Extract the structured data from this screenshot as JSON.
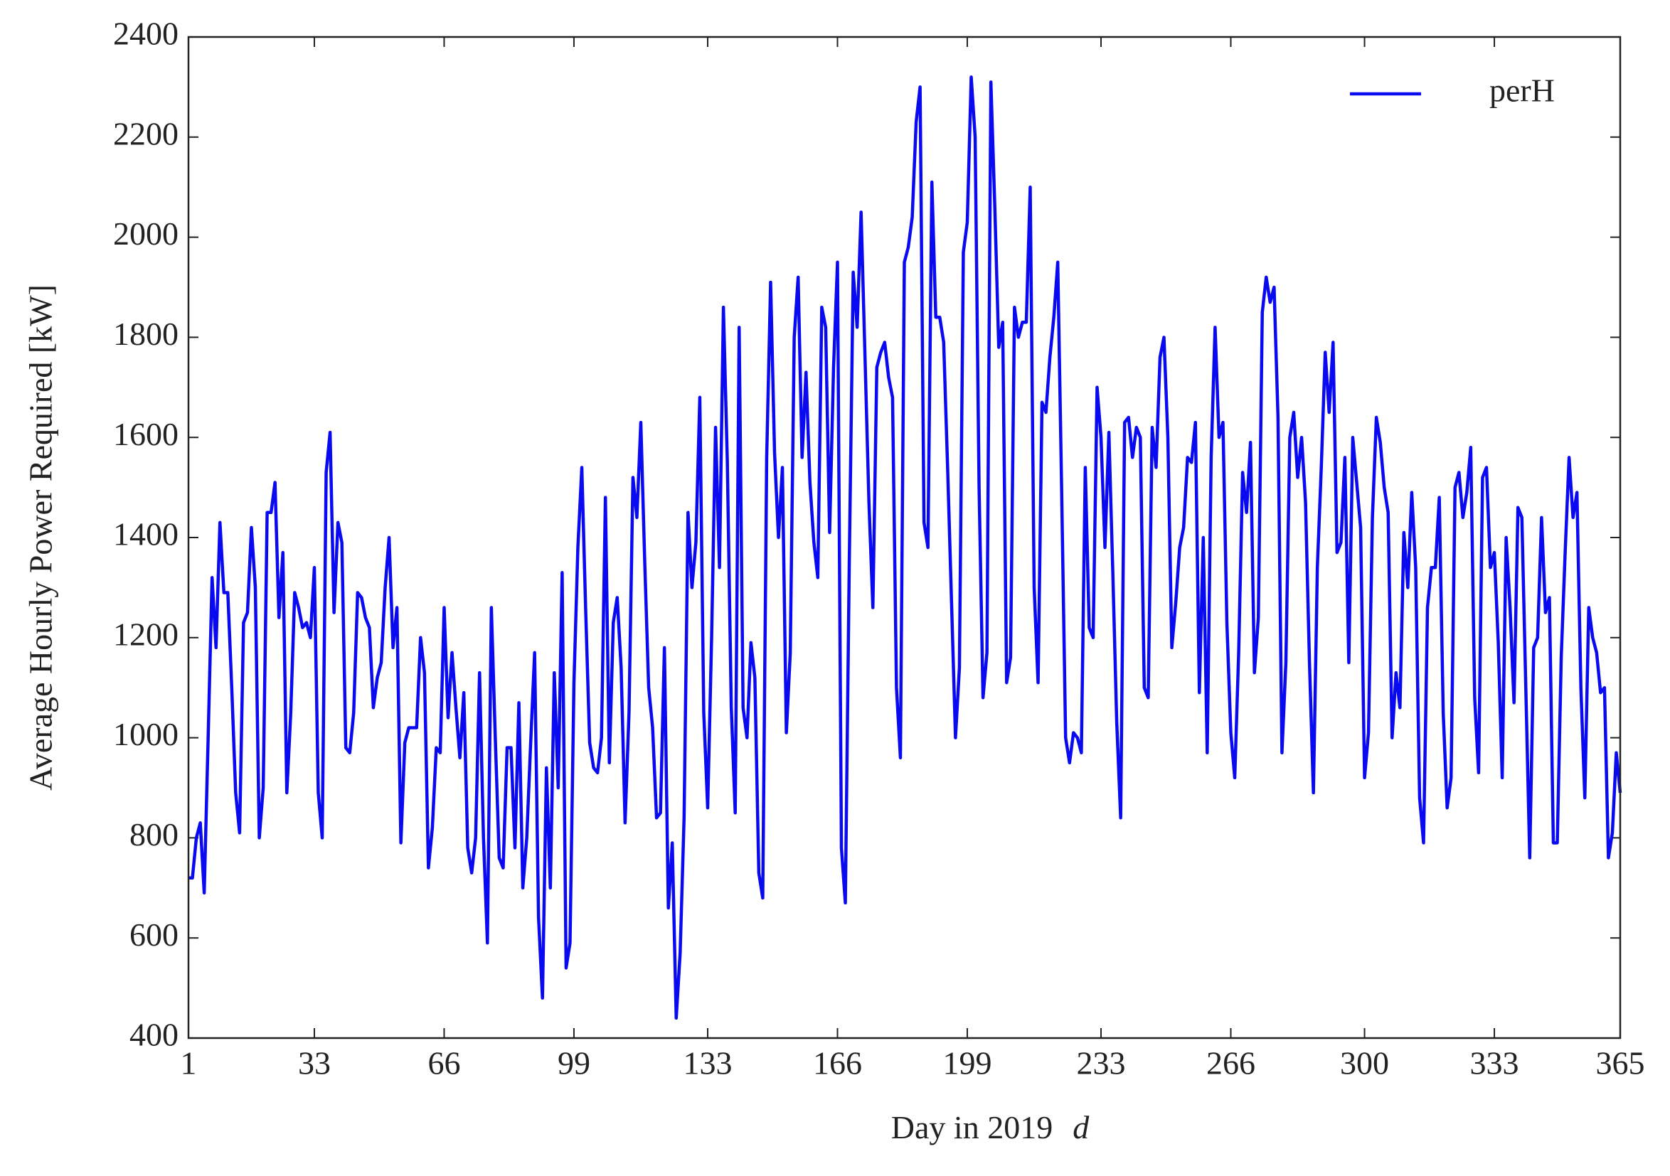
{
  "chart_data": {
    "type": "line",
    "xlabel": "Day in 2019",
    "xlabel_symbol": "d",
    "ylabel": "Average Hourly Power Required [kW]",
    "xlim": [
      1,
      365
    ],
    "xticks": [
      1,
      33,
      66,
      99,
      133,
      166,
      199,
      233,
      266,
      300,
      333,
      365
    ],
    "ylim": [
      400,
      2400
    ],
    "yticks": [
      400,
      600,
      800,
      1000,
      1200,
      1400,
      1600,
      1800,
      2000,
      2200,
      2400
    ],
    "grid": false,
    "legend": "upper right",
    "x": [
      1,
      2,
      3,
      4,
      5,
      6,
      7,
      8,
      9,
      10,
      11,
      12,
      13,
      14,
      15,
      16,
      17,
      18,
      19,
      20,
      21,
      22,
      23,
      24,
      25,
      26,
      27,
      28,
      29,
      30,
      31,
      32,
      33,
      34,
      35,
      36,
      37,
      38,
      39,
      40,
      41,
      42,
      43,
      44,
      45,
      46,
      47,
      48,
      49,
      50,
      51,
      52,
      53,
      54,
      55,
      56,
      57,
      58,
      59,
      60,
      61,
      62,
      63,
      64,
      65,
      66,
      67,
      68,
      69,
      70,
      71,
      72,
      73,
      74,
      75,
      76,
      77,
      78,
      79,
      80,
      81,
      82,
      83,
      84,
      85,
      86,
      87,
      88,
      89,
      90,
      91,
      92,
      93,
      94,
      95,
      96,
      97,
      98,
      99,
      100,
      101,
      102,
      103,
      104,
      105,
      106,
      107,
      108,
      109,
      110,
      111,
      112,
      113,
      114,
      115,
      116,
      117,
      118,
      119,
      120,
      121,
      122,
      123,
      124,
      125,
      126,
      127,
      128,
      129,
      130,
      131,
      132,
      133,
      134,
      135,
      136,
      137,
      138,
      139,
      140,
      141,
      142,
      143,
      144,
      145,
      146,
      147,
      148,
      149,
      150,
      151,
      152,
      153,
      154,
      155,
      156,
      157,
      158,
      159,
      160,
      161,
      162,
      163,
      164,
      165,
      166,
      167,
      168,
      169,
      170,
      171,
      172,
      173,
      174,
      175,
      176,
      177,
      178,
      179,
      180,
      181,
      182,
      183,
      184,
      185,
      186,
      187,
      188,
      189,
      190,
      191,
      192,
      193,
      194,
      195,
      196,
      197,
      198,
      199,
      200,
      201,
      202,
      203,
      204,
      205,
      206,
      207,
      208,
      209,
      210,
      211,
      212,
      213,
      214,
      215,
      216,
      217,
      218,
      219,
      220,
      221,
      222,
      223,
      224,
      225,
      226,
      227,
      228,
      229,
      230,
      231,
      232,
      233,
      234,
      235,
      236,
      237,
      238,
      239,
      240,
      241,
      242,
      243,
      244,
      245,
      246,
      247,
      248,
      249,
      250,
      251,
      252,
      253,
      254,
      255,
      256,
      257,
      258,
      259,
      260,
      261,
      262,
      263,
      264,
      265,
      266,
      267,
      268,
      269,
      270,
      271,
      272,
      273,
      274,
      275,
      276,
      277,
      278,
      279,
      280,
      281,
      282,
      283,
      284,
      285,
      286,
      287,
      288,
      289,
      290,
      291,
      292,
      293,
      294,
      295,
      296,
      297,
      298,
      299,
      300,
      301,
      302,
      303,
      304,
      305,
      306,
      307,
      308,
      309,
      310,
      311,
      312,
      313,
      314,
      315,
      316,
      317,
      318,
      319,
      320,
      321,
      322,
      323,
      324,
      325,
      326,
      327,
      328,
      329,
      330,
      331,
      332,
      333,
      334,
      335,
      336,
      337,
      338,
      339,
      340,
      341,
      342,
      343,
      344,
      345,
      346,
      347,
      348,
      349,
      350,
      351,
      352,
      353,
      354,
      355,
      356,
      357,
      358,
      359,
      360,
      361,
      362,
      363,
      364,
      365
    ],
    "series": [
      {
        "name": "perH",
        "color": "#0a0af0",
        "values": [
          720,
          720,
          800,
          830,
          690,
          1000,
          1320,
          1180,
          1430,
          1290,
          1290,
          1100,
          890,
          810,
          1230,
          1250,
          1420,
          1300,
          800,
          900,
          1450,
          1450,
          1510,
          1240,
          1370,
          890,
          1050,
          1290,
          1260,
          1220,
          1230,
          1200,
          1340,
          890,
          800,
          1530,
          1610,
          1250,
          1430,
          1390,
          980,
          970,
          1050,
          1290,
          1280,
          1240,
          1220,
          1060,
          1120,
          1150,
          1300,
          1400,
          1180,
          1260,
          790,
          990,
          1020,
          1020,
          1020,
          1200,
          1130,
          740,
          820,
          980,
          970,
          1260,
          1040,
          1170,
          1060,
          960,
          1090,
          780,
          730,
          800,
          1130,
          800,
          590,
          1260,
          1000,
          760,
          740,
          980,
          980,
          780,
          1070,
          700,
          800,
          990,
          1170,
          640,
          480,
          940,
          700,
          1130,
          900,
          1330,
          540,
          590,
          1110,
          1380,
          1540,
          1250,
          990,
          940,
          930,
          1000,
          1480,
          950,
          1230,
          1280,
          1140,
          830,
          1050,
          1520,
          1440,
          1630,
          1350,
          1100,
          1020,
          840,
          850,
          1180,
          660,
          790,
          440,
          570,
          840,
          1450,
          1300,
          1390,
          1680,
          1050,
          860,
          1200,
          1620,
          1340,
          1860,
          1550,
          1060,
          850,
          1820,
          1060,
          1000,
          1190,
          1120,
          730,
          680,
          1560,
          1910,
          1570,
          1400,
          1540,
          1010,
          1170,
          1800,
          1920,
          1560,
          1730,
          1510,
          1390,
          1320,
          1860,
          1820,
          1410,
          1740,
          1950,
          780,
          670,
          1350,
          1930,
          1820,
          2050,
          1760,
          1470,
          1260,
          1740,
          1770,
          1790,
          1720,
          1680,
          1100,
          960,
          1950,
          1980,
          2040,
          2230,
          2300,
          1430,
          1380,
          2110,
          1840,
          1840,
          1790,
          1540,
          1270,
          1000,
          1140,
          1970,
          2030,
          2320,
          2200,
          1500,
          1080,
          1170,
          2310,
          2060,
          1780,
          1830,
          1110,
          1160,
          1860,
          1800,
          1830,
          1830,
          2100,
          1300,
          1110,
          1670,
          1650,
          1760,
          1840,
          1950,
          1490,
          1000,
          950,
          1010,
          1000,
          970,
          1540,
          1220,
          1200,
          1700,
          1600,
          1380,
          1610,
          1330,
          1030,
          840,
          1630,
          1640,
          1560,
          1620,
          1600,
          1100,
          1080,
          1620,
          1540,
          1760,
          1800,
          1600,
          1180,
          1270,
          1380,
          1420,
          1560,
          1550,
          1630,
          1090,
          1400,
          970,
          1560,
          1820,
          1600,
          1630,
          1230,
          1010,
          920,
          1170,
          1530,
          1450,
          1590,
          1130,
          1240,
          1850,
          1920,
          1870,
          1900,
          1640,
          970,
          1150,
          1600,
          1650,
          1520,
          1600,
          1470,
          1150,
          890,
          1340,
          1540,
          1770,
          1650,
          1790,
          1370,
          1390,
          1560,
          1150,
          1600,
          1510,
          1420,
          920,
          1010,
          1440,
          1640,
          1590,
          1500,
          1450,
          1000,
          1130,
          1060,
          1410,
          1300,
          1490,
          1340,
          880,
          790,
          1260,
          1340,
          1340,
          1480,
          1050,
          860,
          920,
          1500,
          1530,
          1440,
          1490,
          1580,
          1080,
          930,
          1520,
          1540,
          1340,
          1370,
          1190,
          920,
          1400,
          1260,
          1070,
          1460,
          1440,
          1100,
          760,
          1180,
          1200,
          1440,
          1250,
          1280,
          790,
          790,
          1160,
          1370,
          1560,
          1440,
          1490,
          1100,
          880,
          1260,
          1200,
          1170,
          1090,
          1100,
          760,
          810,
          970,
          890
        ]
      }
    ]
  }
}
